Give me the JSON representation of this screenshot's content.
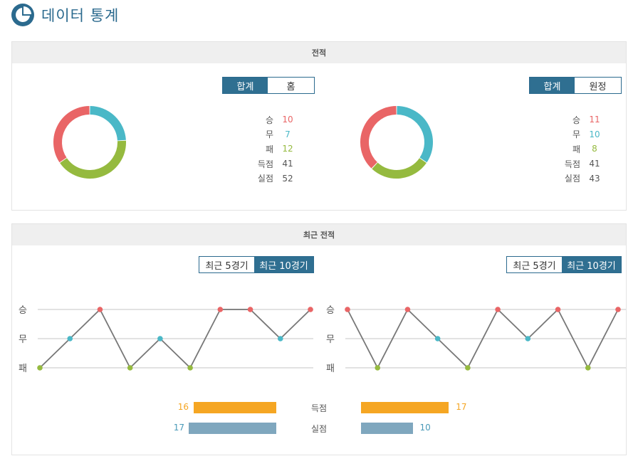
{
  "page": {
    "title": "데이터 통계"
  },
  "colors": {
    "win": "#e96566",
    "draw": "#4ab8c7",
    "loss": "#95ba3f",
    "scored": "#f5a623",
    "conceded": "#7fa7be",
    "accent": "#2f6f91"
  },
  "record": {
    "title": "전적",
    "home": {
      "toggle": [
        {
          "label": "합계",
          "active": true
        },
        {
          "label": "홈",
          "active": false
        }
      ],
      "stats": [
        {
          "label": "승",
          "value": "10",
          "kind": "win"
        },
        {
          "label": "무",
          "value": "7",
          "kind": "draw"
        },
        {
          "label": "패",
          "value": "12",
          "kind": "loss"
        },
        {
          "label": "득점",
          "value": "41",
          "kind": "plain"
        },
        {
          "label": "실점",
          "value": "52",
          "kind": "plain"
        }
      ]
    },
    "away": {
      "toggle": [
        {
          "label": "합계",
          "active": true
        },
        {
          "label": "원정",
          "active": false
        }
      ],
      "stats": [
        {
          "label": "승",
          "value": "11",
          "kind": "win"
        },
        {
          "label": "무",
          "value": "10",
          "kind": "draw"
        },
        {
          "label": "패",
          "value": "8",
          "kind": "loss"
        },
        {
          "label": "득점",
          "value": "41",
          "kind": "plain"
        },
        {
          "label": "실점",
          "value": "43",
          "kind": "plain"
        }
      ]
    }
  },
  "recent": {
    "title": "최근 전적",
    "toggle": [
      {
        "label": "최근 5경기",
        "active": false
      },
      {
        "label": "최근 10경기",
        "active": true
      }
    ],
    "ylabels": [
      "승",
      "무",
      "패"
    ],
    "home_results": [
      "L",
      "D",
      "W",
      "L",
      "D",
      "L",
      "W",
      "W",
      "D",
      "W"
    ],
    "away_results": [
      "W",
      "L",
      "W",
      "D",
      "L",
      "W",
      "D",
      "W",
      "L",
      "W"
    ],
    "goals_label": "득점",
    "conceded_label": "실점",
    "home_goals": "16",
    "home_conceded": "17",
    "away_goals": "17",
    "away_conceded": "10"
  }
}
